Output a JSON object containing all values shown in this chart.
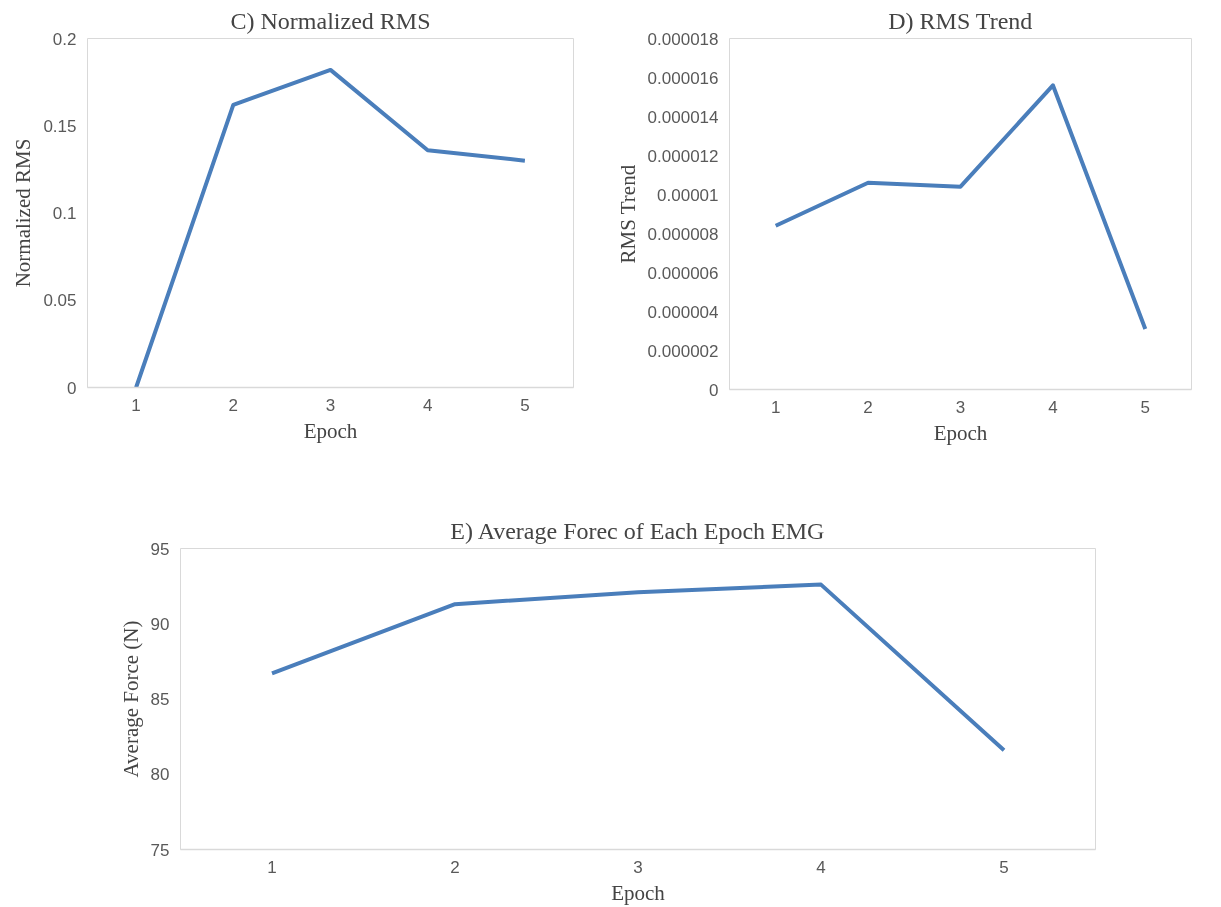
{
  "chart_data": [
    {
      "type": "line",
      "title": "C) Normalized RMS",
      "xlabel": "Epoch",
      "ylabel": "Normalized RMS",
      "categories": [
        "1",
        "2",
        "3",
        "4",
        "5"
      ],
      "ylim": [
        0,
        0.2
      ],
      "yticks": [
        0,
        0.05,
        0.1,
        0.15,
        0.2
      ],
      "series": [
        {
          "color": "#4a7ebb",
          "values": [
            0,
            0.162,
            0.182,
            0.136,
            0.13
          ]
        }
      ]
    },
    {
      "type": "line",
      "title": "D) RMS Trend",
      "xlabel": "Epoch",
      "ylabel": "RMS Trend",
      "categories": [
        "1",
        "2",
        "3",
        "4",
        "5"
      ],
      "ylim": [
        0,
        1.8e-05
      ],
      "yticks": [
        0,
        {
          "value": 2e-06,
          "label": "0.000002"
        },
        {
          "value": 4e-06,
          "label": "0.000004"
        },
        {
          "value": 6e-06,
          "label": "0.000006"
        },
        {
          "value": 8e-06,
          "label": "0.000008"
        },
        {
          "value": 1e-05,
          "label": "0.00001"
        },
        {
          "value": 1.2e-05,
          "label": "0.000012"
        },
        {
          "value": 1.4e-05,
          "label": "0.000014"
        },
        {
          "value": 1.6e-05,
          "label": "0.000016"
        },
        {
          "value": 1.8e-05,
          "label": "0.000018"
        }
      ],
      "series": [
        {
          "color": "#4a7ebb",
          "values": [
            8.4e-06,
            1.06e-05,
            1.04e-05,
            1.56e-05,
            3.1e-06
          ]
        }
      ]
    },
    {
      "type": "line",
      "title": "E) Average Forec of Each Epoch EMG",
      "xlabel": "Epoch",
      "ylabel": "Average Force (N)",
      "categories": [
        "1",
        "2",
        "3",
        "4",
        "5"
      ],
      "ylim": [
        75,
        95
      ],
      "yticks": [
        75,
        80,
        85,
        90,
        95
      ],
      "series": [
        {
          "color": "#4a7ebb",
          "values": [
            86.7,
            91.3,
            92.1,
            92.6,
            81.6
          ]
        }
      ]
    }
  ]
}
